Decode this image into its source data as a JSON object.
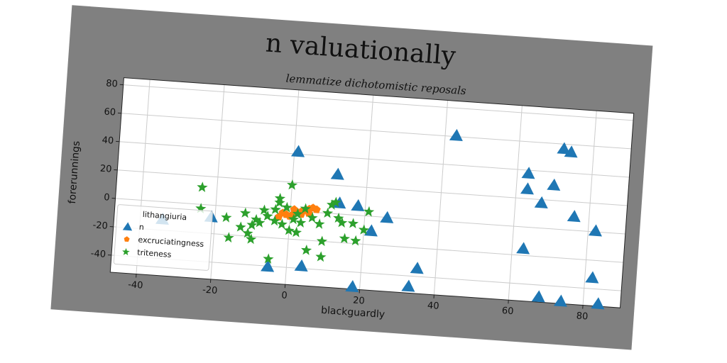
{
  "chart_data": {
    "type": "scatter",
    "title": "n valuationally",
    "subtitle": "lemmatize dichotomistic reposals",
    "xlabel": "blackguardly",
    "ylabel": "forerunnings",
    "legend_title": "lithangiuria",
    "legend": "lower left",
    "grid": true,
    "xlim": [
      -47,
      90
    ],
    "ylim": [
      -52,
      85
    ],
    "xticks": [
      -40,
      -20,
      0,
      20,
      40,
      60,
      80
    ],
    "yticks": [
      -40,
      -20,
      0,
      20,
      40,
      60,
      80
    ],
    "series": [
      {
        "name": "n",
        "color": "#1f77b4",
        "marker": "triangle",
        "x": [
          -34,
          -21,
          -5,
          1,
          4,
          12,
          13,
          18,
          18,
          22,
          26,
          33,
          35,
          43,
          63,
          63,
          63,
          67,
          68,
          70,
          72,
          74,
          74,
          76,
          82,
          82,
          84
        ],
        "values": [
          -12,
          -8,
          -40,
          42,
          -38,
          28,
          8,
          7,
          -50,
          -10,
          0,
          -47,
          -34,
          61,
          38,
          27,
          -15,
          18,
          -48,
          31,
          57,
          -50,
          55,
          10,
          1,
          -32,
          -50
        ]
      },
      {
        "name": "excruciatingness",
        "color": "#ff7f0e",
        "marker": "pentagon",
        "x": [
          -3,
          -1,
          0,
          1,
          2,
          3,
          4,
          5,
          6,
          7,
          3,
          5,
          -2,
          1
        ],
        "values": [
          -5,
          -3,
          -4,
          -2,
          -1,
          0,
          1,
          2,
          3,
          2,
          -2,
          -1,
          -2,
          1
        ]
      },
      {
        "name": "triteness",
        "color": "#2ca02c",
        "marker": "star",
        "x": [
          -24,
          -24,
          -17,
          -16,
          -12,
          -11,
          -10,
          -10,
          -9,
          -8,
          -6,
          -5,
          -4,
          -3,
          -3,
          -2,
          -1,
          0,
          0,
          1,
          2,
          3,
          4,
          5,
          6,
          8,
          9,
          9,
          10,
          11,
          12,
          13,
          14,
          15,
          17,
          18,
          20,
          21,
          -4,
          2,
          -7,
          -13
        ],
        "values": [
          12,
          -3,
          -8,
          -22,
          -4,
          -18,
          -12,
          -22,
          -8,
          -10,
          -5,
          -35,
          0,
          5,
          8,
          -10,
          2,
          18,
          -14,
          -6,
          -15,
          -8,
          2,
          -27,
          -4,
          -8,
          -20,
          -31,
          0,
          6,
          8,
          -3,
          -6,
          -17,
          -6,
          -18,
          -10,
          3,
          -8,
          -2,
          -1,
          -14
        ]
      }
    ]
  }
}
